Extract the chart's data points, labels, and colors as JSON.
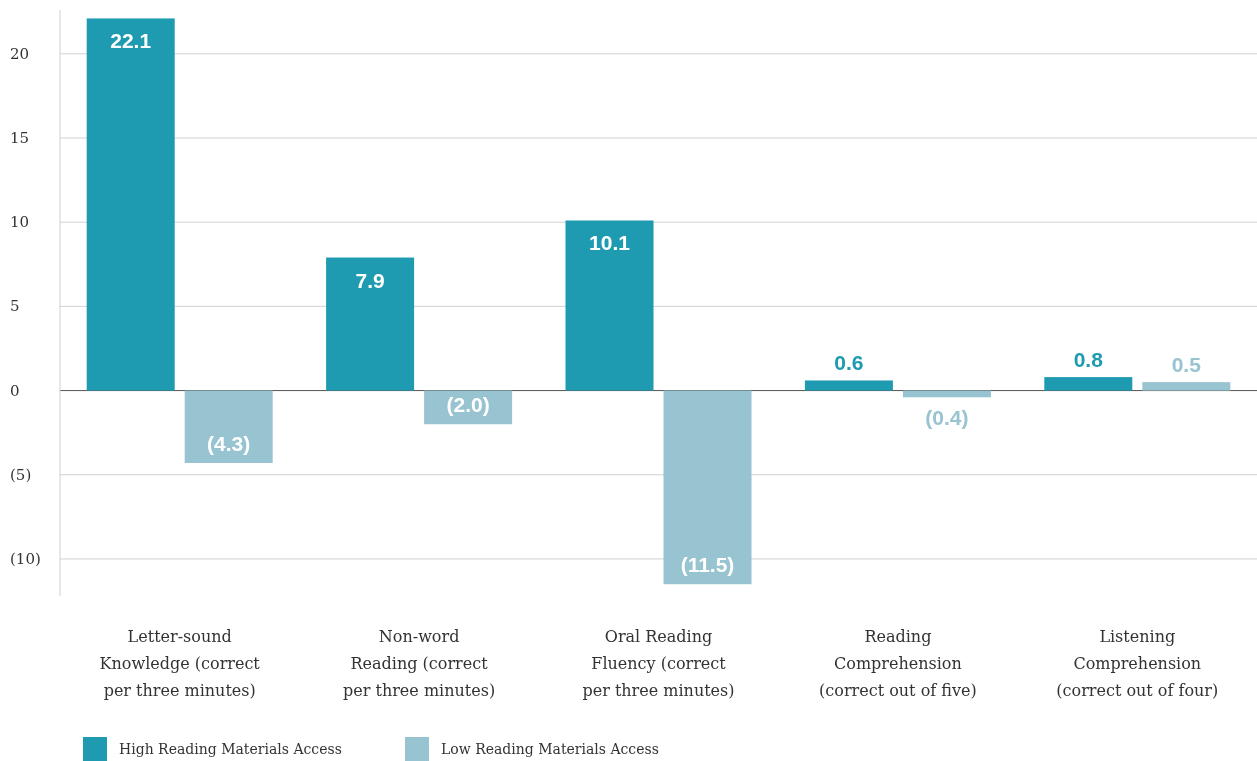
{
  "chart_data": {
    "type": "bar",
    "categories": [
      "Letter-sound\nKnowledge (correct\nper three minutes)",
      "Non-word\nReading (correct\nper three minutes)",
      "Oral Reading\nFluency (correct\nper three minutes)",
      "Reading\nComprehension\n(correct out of five)",
      "Listening\nComprehension\n(correct out of four)"
    ],
    "series": [
      {
        "name": "High Reading Materials Access",
        "color": "#1e9bb0",
        "values": [
          22.1,
          7.9,
          10.1,
          0.6,
          0.8
        ],
        "value_labels": [
          "22.1",
          "7.9",
          "10.1",
          "0.6",
          "0.8"
        ]
      },
      {
        "name": "Low Reading Materials Access",
        "color": "#98c3d0",
        "values": [
          -4.3,
          -2.0,
          -11.5,
          -0.4,
          0.5
        ],
        "value_labels": [
          "(4.3)",
          "(2.0)",
          "(11.5)",
          "(0.4)",
          "0.5"
        ]
      }
    ],
    "ylim": [
      -12.2,
      22.6
    ],
    "yticks": [
      {
        "value": -10,
        "label": "(10)"
      },
      {
        "value": -5,
        "label": "(5)"
      },
      0,
      5,
      10,
      15,
      20
    ],
    "grid": "y",
    "legend": "bottom left"
  }
}
